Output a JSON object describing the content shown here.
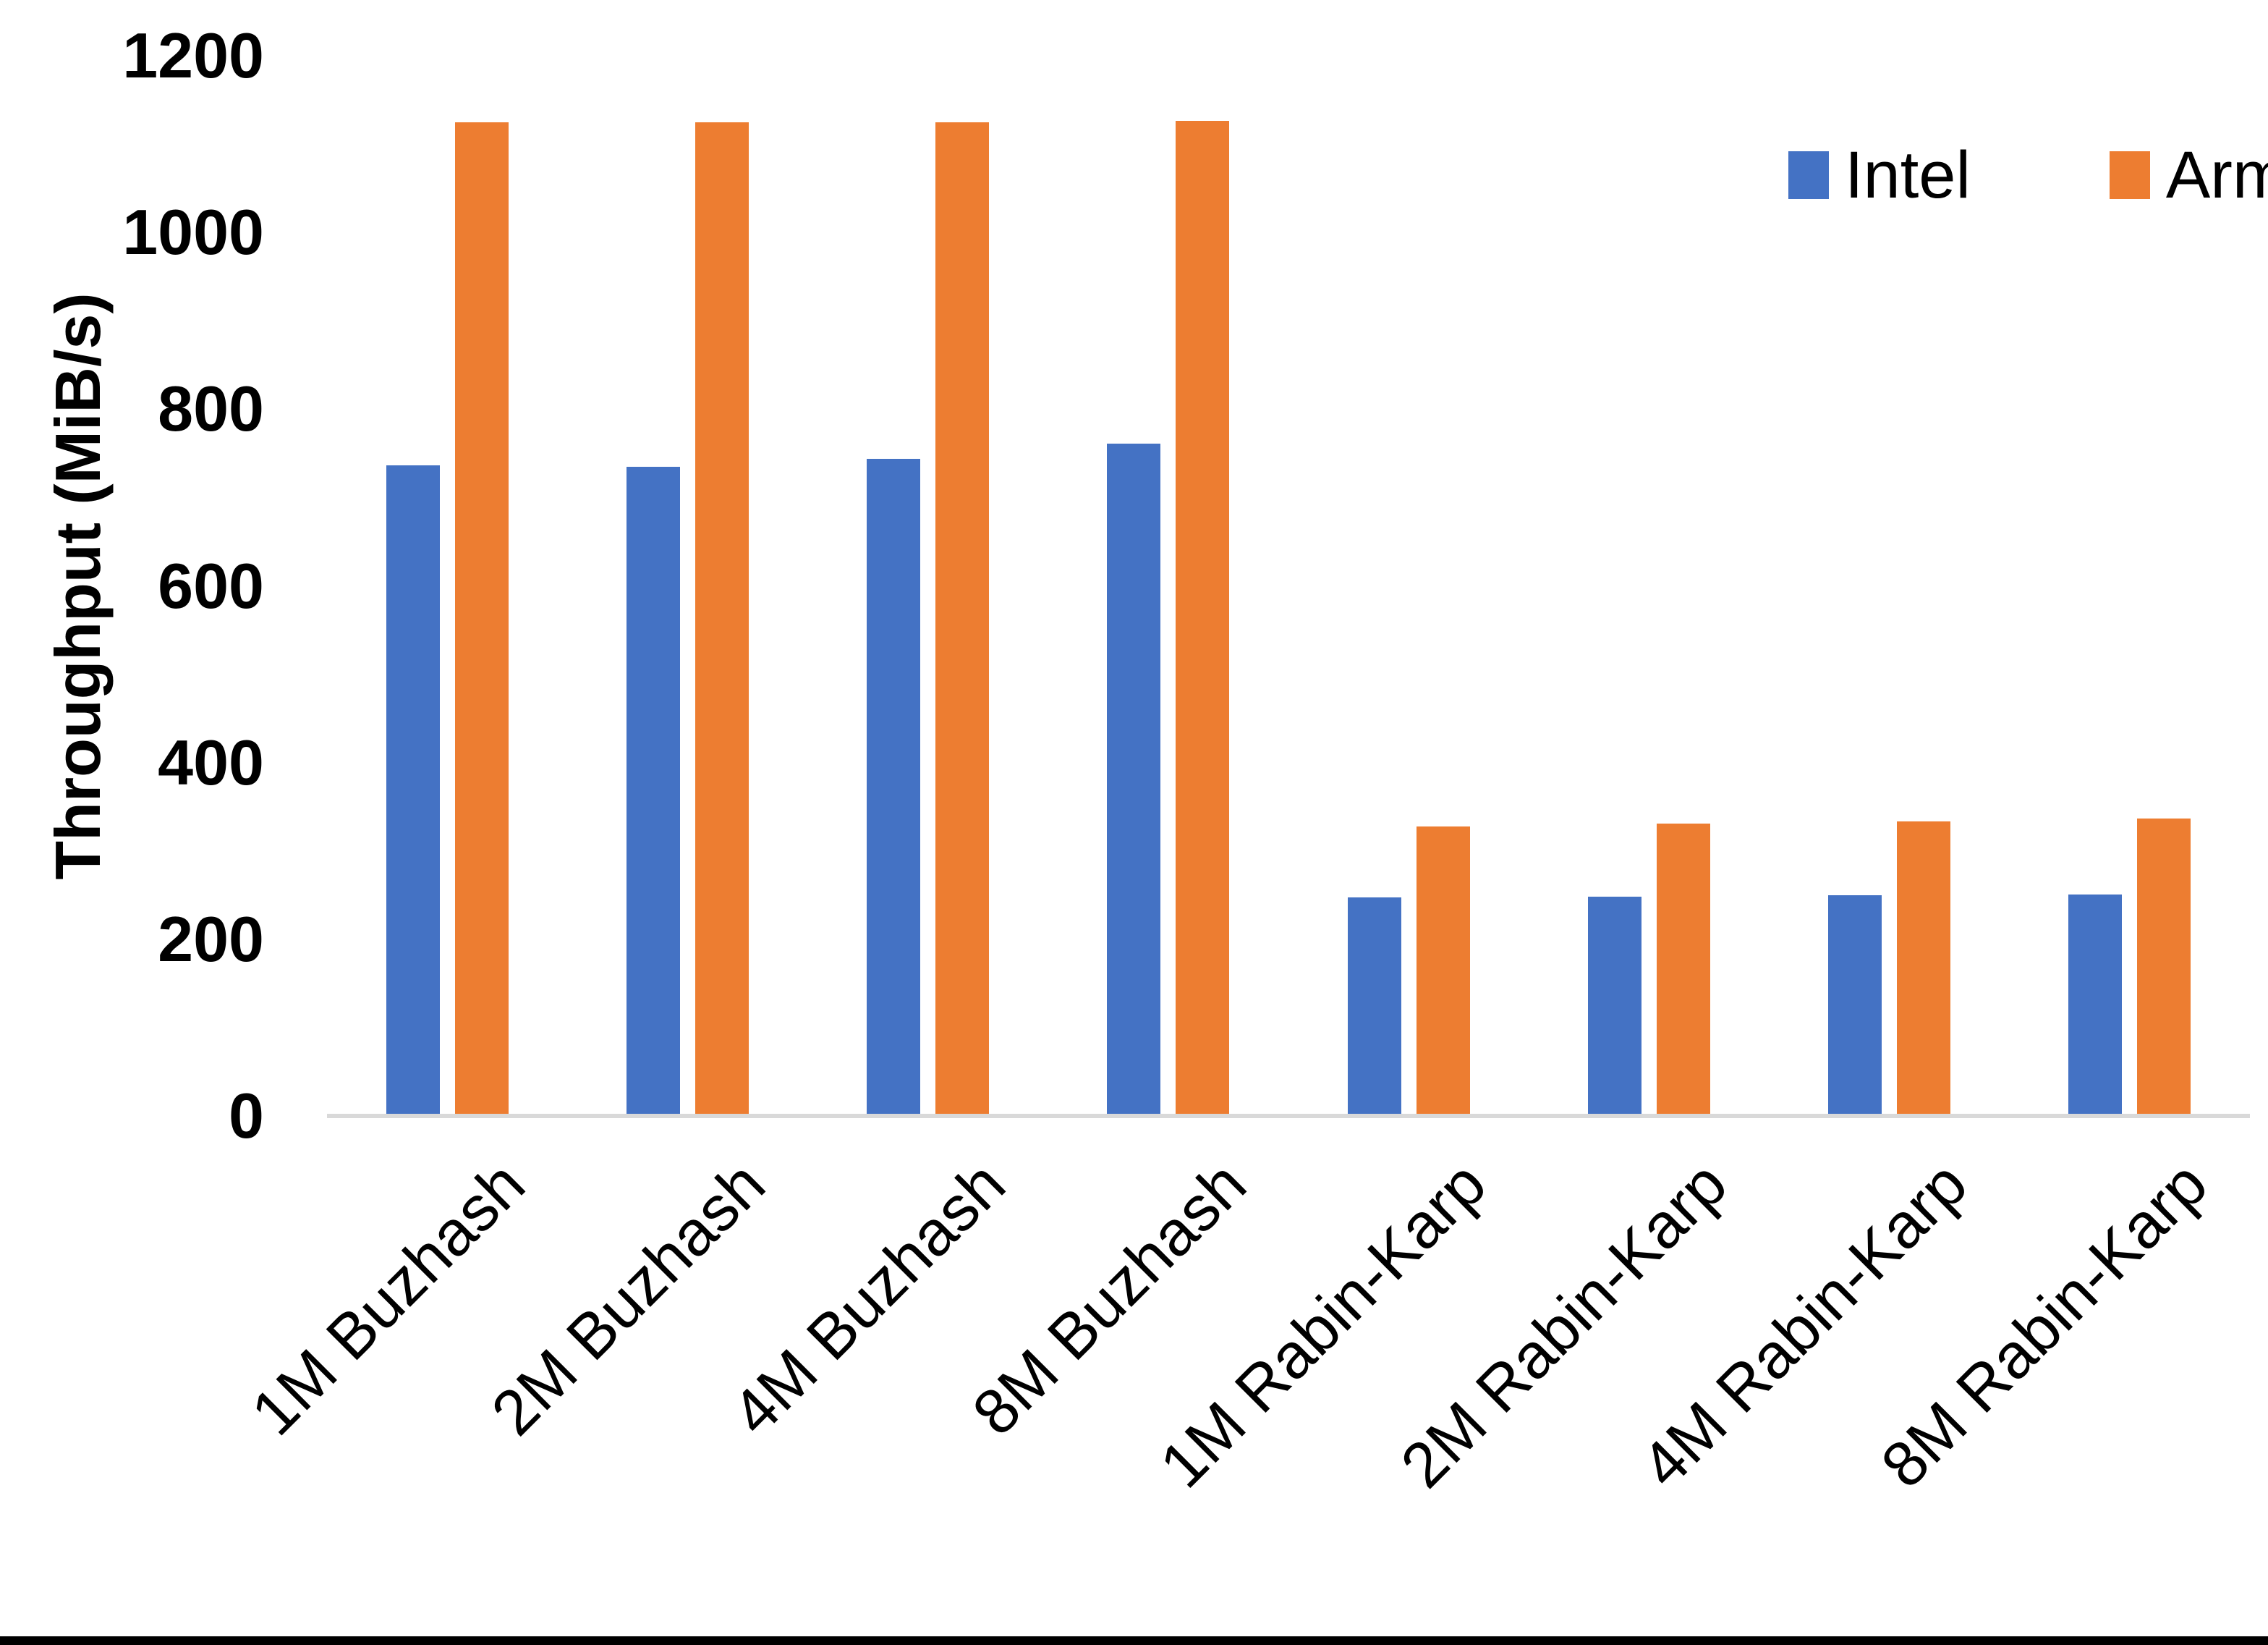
{
  "chart_data": {
    "type": "bar",
    "title": "",
    "xlabel": "",
    "ylabel": "Throughput (MiB/s)",
    "ylim": [
      0,
      1200
    ],
    "yticks": [
      0,
      200,
      400,
      600,
      800,
      1000,
      1200
    ],
    "grid": "off",
    "legend_position": "top-right",
    "categories": [
      "1M Buzhash",
      "2M Buzhash",
      "4M Buzhash",
      "8M Buzhash",
      "1M Rabin-Karp",
      "2M Rabin-Karp",
      "4M Rabin-Karp",
      "8M Rabin-Karp"
    ],
    "series": [
      {
        "name": "Intel",
        "color": "#4472C4",
        "values": [
          736,
          735,
          744,
          761,
          247,
          248,
          250,
          251
        ]
      },
      {
        "name": "Arm",
        "color": "#ED7D31",
        "values": [
          1125,
          1125,
          1125,
          1126,
          328,
          331,
          333,
          337
        ]
      }
    ]
  },
  "colors": {
    "background": "#FFFFFF",
    "axis_line": "#D9D9D9",
    "text": "#000000",
    "bottom_border": "#000000"
  }
}
